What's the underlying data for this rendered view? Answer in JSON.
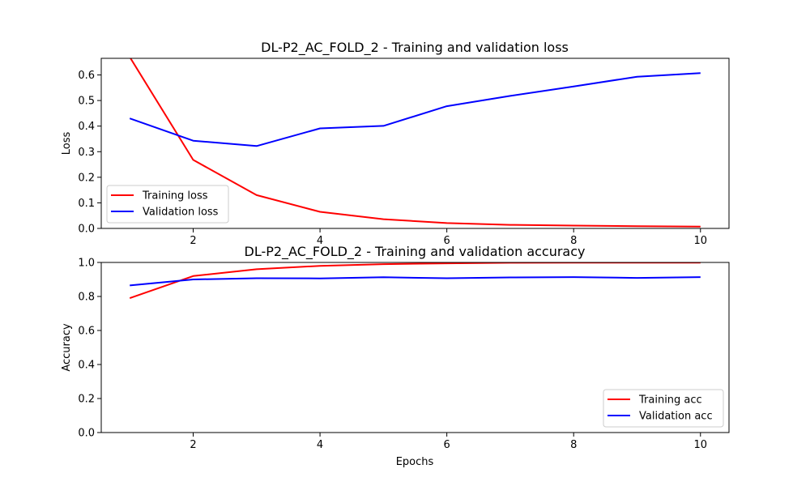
{
  "chart_data": [
    {
      "type": "line",
      "title": "DL-P2_AC_FOLD_2 - Training and validation loss",
      "xlabel": "",
      "ylabel": "Loss",
      "xlim": [
        0.55,
        10.45
      ],
      "ylim": [
        0,
        0.665
      ],
      "x": [
        1,
        2,
        3,
        4,
        5,
        6,
        7,
        8,
        9,
        10
      ],
      "xticks": [
        2,
        4,
        6,
        8,
        10
      ],
      "yticks": [
        0.0,
        0.1,
        0.2,
        0.3,
        0.4,
        0.5,
        0.6
      ],
      "ytick_decimals": 1,
      "grid": false,
      "legend_position": "bottom-left",
      "series": [
        {
          "name": "Training loss",
          "color": "#ff0000",
          "values": [
            0.67,
            0.268,
            0.13,
            0.065,
            0.036,
            0.021,
            0.014,
            0.011,
            0.009,
            0.007
          ]
        },
        {
          "name": "Validation loss",
          "color": "#0000ff",
          "values": [
            0.43,
            0.343,
            0.322,
            0.391,
            0.401,
            0.478,
            0.518,
            0.555,
            0.593,
            0.607
          ]
        }
      ]
    },
    {
      "type": "line",
      "title": "DL-P2_AC_FOLD_2 - Training and validation accuracy",
      "xlabel": "Epochs",
      "ylabel": "Accuracy",
      "xlim": [
        0.55,
        10.45
      ],
      "ylim": [
        0,
        1.0
      ],
      "x": [
        1,
        2,
        3,
        4,
        5,
        6,
        7,
        8,
        9,
        10
      ],
      "xticks": [
        2,
        4,
        6,
        8,
        10
      ],
      "yticks": [
        0.0,
        0.2,
        0.4,
        0.6,
        0.8,
        1.0
      ],
      "ytick_decimals": 1,
      "grid": false,
      "legend_position": "bottom-right",
      "series": [
        {
          "name": "Training acc",
          "color": "#ff0000",
          "values": [
            0.79,
            0.92,
            0.96,
            0.98,
            0.99,
            0.995,
            0.998,
            0.999,
            0.999,
            0.999
          ]
        },
        {
          "name": "Validation acc",
          "color": "#0000ff",
          "values": [
            0.865,
            0.9,
            0.907,
            0.906,
            0.913,
            0.907,
            0.912,
            0.914,
            0.909,
            0.914
          ]
        }
      ]
    }
  ]
}
